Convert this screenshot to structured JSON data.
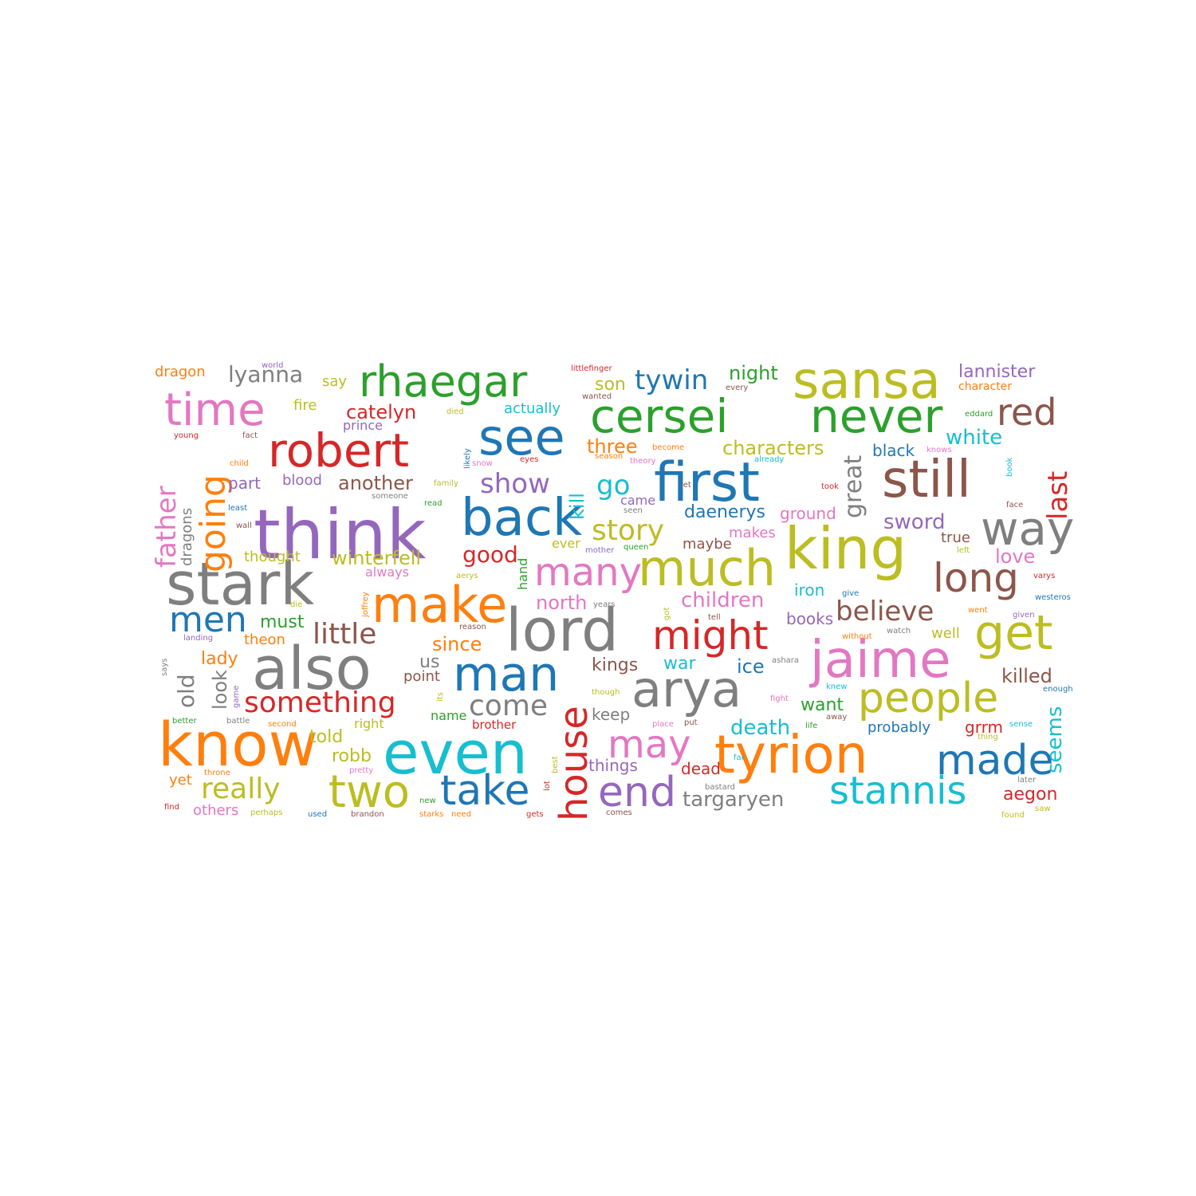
{
  "palette": {
    "blue": "#1f77b4",
    "orange": "#ff7f0e",
    "green": "#2ca02c",
    "red": "#d62728",
    "purple": "#9467bd",
    "brown": "#8c564b",
    "pink": "#e377c2",
    "gray": "#7f7f7f",
    "olive": "#bcbd22",
    "cyan": "#17becf"
  },
  "words": [
    {
      "text": "think",
      "color": "purple"
    },
    {
      "text": "know",
      "color": "orange"
    },
    {
      "text": "stark",
      "color": "gray"
    },
    {
      "text": "lord",
      "color": "gray"
    },
    {
      "text": "also",
      "color": "gray"
    },
    {
      "text": "even",
      "color": "cyan"
    },
    {
      "text": "king",
      "color": "olive"
    },
    {
      "text": "cersei",
      "color": "green"
    },
    {
      "text": "never",
      "color": "green"
    },
    {
      "text": "first",
      "color": "blue"
    },
    {
      "text": "still",
      "color": "brown"
    },
    {
      "text": "sansa",
      "color": "olive"
    },
    {
      "text": "tyrion",
      "color": "orange"
    },
    {
      "text": "arya",
      "color": "gray"
    },
    {
      "text": "jaime",
      "color": "pink"
    },
    {
      "text": "back",
      "color": "blue"
    },
    {
      "text": "much",
      "color": "olive"
    },
    {
      "text": "make",
      "color": "orange"
    },
    {
      "text": "robert",
      "color": "red"
    },
    {
      "text": "time",
      "color": "pink"
    },
    {
      "text": "rhaegar",
      "color": "green"
    },
    {
      "text": "house",
      "color": "red"
    },
    {
      "text": "people",
      "color": "olive"
    },
    {
      "text": "man",
      "color": "blue"
    },
    {
      "text": "get",
      "color": "olive"
    },
    {
      "text": "might",
      "color": "red"
    },
    {
      "text": "see",
      "color": "blue"
    },
    {
      "text": "two",
      "color": "olive"
    },
    {
      "text": "way",
      "color": "gray"
    },
    {
      "text": "stannis",
      "color": "cyan"
    },
    {
      "text": "many",
      "color": "pink"
    },
    {
      "text": "going",
      "color": "orange"
    },
    {
      "text": "take",
      "color": "blue"
    },
    {
      "text": "made",
      "color": "blue"
    },
    {
      "text": "long",
      "color": "brown"
    },
    {
      "text": "men",
      "color": "blue"
    },
    {
      "text": "end",
      "color": "purple"
    },
    {
      "text": "red",
      "color": "brown"
    },
    {
      "text": "may",
      "color": "pink"
    },
    {
      "text": "something",
      "color": "red"
    },
    {
      "text": "little",
      "color": "brown"
    },
    {
      "text": "come",
      "color": "gray"
    },
    {
      "text": "really",
      "color": "olive"
    },
    {
      "text": "story",
      "color": "olive"
    },
    {
      "text": "believe",
      "color": "brown"
    },
    {
      "text": "tywin",
      "color": "blue"
    },
    {
      "text": "father",
      "color": "pink"
    },
    {
      "text": "last",
      "color": "red"
    },
    {
      "text": "great",
      "color": "gray"
    },
    {
      "text": "show",
      "color": "purple"
    },
    {
      "text": "targaryen",
      "color": "gray"
    },
    {
      "text": "lyanna",
      "color": "gray"
    },
    {
      "text": "go",
      "color": "cyan"
    },
    {
      "text": "old",
      "color": "gray"
    },
    {
      "text": "catelyn",
      "color": "red"
    },
    {
      "text": "children",
      "color": "pink"
    },
    {
      "text": "characters",
      "color": "olive"
    },
    {
      "text": "white",
      "color": "cyan"
    },
    {
      "text": "killed",
      "color": "brown"
    },
    {
      "text": "seems",
      "color": "cyan"
    },
    {
      "text": "death",
      "color": "cyan"
    },
    {
      "text": "good",
      "color": "red"
    },
    {
      "text": "north",
      "color": "pink"
    },
    {
      "text": "winterfell",
      "color": "olive"
    },
    {
      "text": "another",
      "color": "brown"
    },
    {
      "text": "sword",
      "color": "purple"
    },
    {
      "text": "kill",
      "color": "cyan"
    },
    {
      "text": "lannister",
      "color": "purple"
    },
    {
      "text": "three",
      "color": "orange"
    },
    {
      "text": "daenerys",
      "color": "blue"
    },
    {
      "text": "love",
      "color": "pink"
    },
    {
      "text": "aegon",
      "color": "red"
    },
    {
      "text": "night",
      "color": "green"
    },
    {
      "text": "kings",
      "color": "brown"
    },
    {
      "text": "since",
      "color": "orange"
    },
    {
      "text": "told",
      "color": "olive"
    },
    {
      "text": "lady",
      "color": "orange"
    },
    {
      "text": "ice",
      "color": "blue"
    },
    {
      "text": "must",
      "color": "green"
    },
    {
      "text": "robb",
      "color": "olive"
    },
    {
      "text": "war",
      "color": "cyan"
    },
    {
      "text": "want",
      "color": "green"
    },
    {
      "text": "us",
      "color": "gray"
    },
    {
      "text": "look",
      "color": "gray"
    },
    {
      "text": "iron",
      "color": "cyan"
    },
    {
      "text": "son",
      "color": "olive"
    },
    {
      "text": "grrm",
      "color": "red"
    },
    {
      "text": "books",
      "color": "purple"
    },
    {
      "text": "things",
      "color": "purple"
    },
    {
      "text": "dead",
      "color": "red"
    },
    {
      "text": "dragons",
      "color": "gray"
    },
    {
      "text": "black",
      "color": "blue"
    },
    {
      "text": "well",
      "color": "olive"
    },
    {
      "text": "probably",
      "color": "blue"
    },
    {
      "text": "true",
      "color": "brown"
    },
    {
      "text": "keep",
      "color": "gray"
    },
    {
      "text": "point",
      "color": "brown"
    },
    {
      "text": "thought",
      "color": "olive"
    },
    {
      "text": "part",
      "color": "purple"
    },
    {
      "text": "theon",
      "color": "orange"
    },
    {
      "text": "others",
      "color": "pink"
    },
    {
      "text": "ground",
      "color": "pink"
    },
    {
      "text": "maybe",
      "color": "brown"
    },
    {
      "text": "makes",
      "color": "pink"
    },
    {
      "text": "dragon",
      "color": "orange"
    },
    {
      "text": "say",
      "color": "olive"
    },
    {
      "text": "fire",
      "color": "olive"
    },
    {
      "text": "actually",
      "color": "cyan"
    },
    {
      "text": "prince",
      "color": "purple"
    },
    {
      "text": "blood",
      "color": "purple"
    },
    {
      "text": "always",
      "color": "pink"
    },
    {
      "text": "came",
      "color": "purple"
    },
    {
      "text": "name",
      "color": "green"
    },
    {
      "text": "brother",
      "color": "red"
    },
    {
      "text": "right",
      "color": "olive"
    },
    {
      "text": "hand",
      "color": "green"
    },
    {
      "text": "yet",
      "color": "orange"
    },
    {
      "text": "ever",
      "color": "olive"
    },
    {
      "text": "littlefinger",
      "color": "red"
    },
    {
      "text": "character",
      "color": "orange"
    },
    {
      "text": "eddard",
      "color": "green"
    },
    {
      "text": "world",
      "color": "purple"
    },
    {
      "text": "wanted",
      "color": "brown"
    },
    {
      "text": "every",
      "color": "brown"
    },
    {
      "text": "young",
      "color": "red"
    },
    {
      "text": "fact",
      "color": "brown"
    },
    {
      "text": "died",
      "color": "olive"
    },
    {
      "text": "child",
      "color": "orange"
    },
    {
      "text": "likely",
      "color": "blue"
    },
    {
      "text": "snow",
      "color": "pink"
    },
    {
      "text": "eyes",
      "color": "red"
    },
    {
      "text": "season",
      "color": "orange"
    },
    {
      "text": "become",
      "color": "orange"
    },
    {
      "text": "theory",
      "color": "pink"
    },
    {
      "text": "already",
      "color": "cyan"
    },
    {
      "text": "knows",
      "color": "pink"
    },
    {
      "text": "book",
      "color": "cyan"
    },
    {
      "text": "took",
      "color": "red"
    },
    {
      "text": "face",
      "color": "brown"
    },
    {
      "text": "family",
      "color": "olive"
    },
    {
      "text": "let",
      "color": "brown"
    },
    {
      "text": "someone",
      "color": "gray"
    },
    {
      "text": "read",
      "color": "green"
    },
    {
      "text": "seen",
      "color": "gray"
    },
    {
      "text": "least",
      "color": "blue"
    },
    {
      "text": "wall",
      "color": "brown"
    },
    {
      "text": "mother",
      "color": "purple"
    },
    {
      "text": "queen",
      "color": "green"
    },
    {
      "text": "left",
      "color": "olive"
    },
    {
      "text": "varys",
      "color": "red"
    },
    {
      "text": "aerys",
      "color": "olive"
    },
    {
      "text": "die",
      "color": "olive"
    },
    {
      "text": "joffrey",
      "color": "orange"
    },
    {
      "text": "give",
      "color": "blue"
    },
    {
      "text": "westeros",
      "color": "blue"
    },
    {
      "text": "years",
      "color": "gray"
    },
    {
      "text": "got",
      "color": "olive"
    },
    {
      "text": "tell",
      "color": "brown"
    },
    {
      "text": "went",
      "color": "orange"
    },
    {
      "text": "given",
      "color": "purple"
    },
    {
      "text": "landing",
      "color": "purple"
    },
    {
      "text": "reason",
      "color": "brown"
    },
    {
      "text": "without",
      "color": "orange"
    },
    {
      "text": "watch",
      "color": "gray"
    },
    {
      "text": "says",
      "color": "gray"
    },
    {
      "text": "ashara",
      "color": "gray"
    },
    {
      "text": "knew",
      "color": "cyan"
    },
    {
      "text": "enough",
      "color": "blue"
    },
    {
      "text": "game",
      "color": "purple"
    },
    {
      "text": "its",
      "color": "olive"
    },
    {
      "text": "though",
      "color": "olive"
    },
    {
      "text": "fight",
      "color": "pink"
    },
    {
      "text": "better",
      "color": "green"
    },
    {
      "text": "battle",
      "color": "gray"
    },
    {
      "text": "second",
      "color": "orange"
    },
    {
      "text": "place",
      "color": "pink"
    },
    {
      "text": "put",
      "color": "brown"
    },
    {
      "text": "life",
      "color": "green"
    },
    {
      "text": "away",
      "color": "brown"
    },
    {
      "text": "sense",
      "color": "cyan"
    },
    {
      "text": "thing",
      "color": "olive"
    },
    {
      "text": "throne",
      "color": "orange"
    },
    {
      "text": "pretty",
      "color": "pink"
    },
    {
      "text": "far",
      "color": "cyan"
    },
    {
      "text": "best",
      "color": "olive"
    },
    {
      "text": "bastard",
      "color": "gray"
    },
    {
      "text": "later",
      "color": "gray"
    },
    {
      "text": "lot",
      "color": "red"
    },
    {
      "text": "find",
      "color": "red"
    },
    {
      "text": "perhaps",
      "color": "olive"
    },
    {
      "text": "used",
      "color": "blue"
    },
    {
      "text": "brandon",
      "color": "brown"
    },
    {
      "text": "new",
      "color": "green"
    },
    {
      "text": "starks",
      "color": "orange"
    },
    {
      "text": "need",
      "color": "orange"
    },
    {
      "text": "gets",
      "color": "red"
    },
    {
      "text": "comes",
      "color": "brown"
    },
    {
      "text": "found",
      "color": "olive"
    },
    {
      "text": "saw",
      "color": "olive"
    }
  ]
}
